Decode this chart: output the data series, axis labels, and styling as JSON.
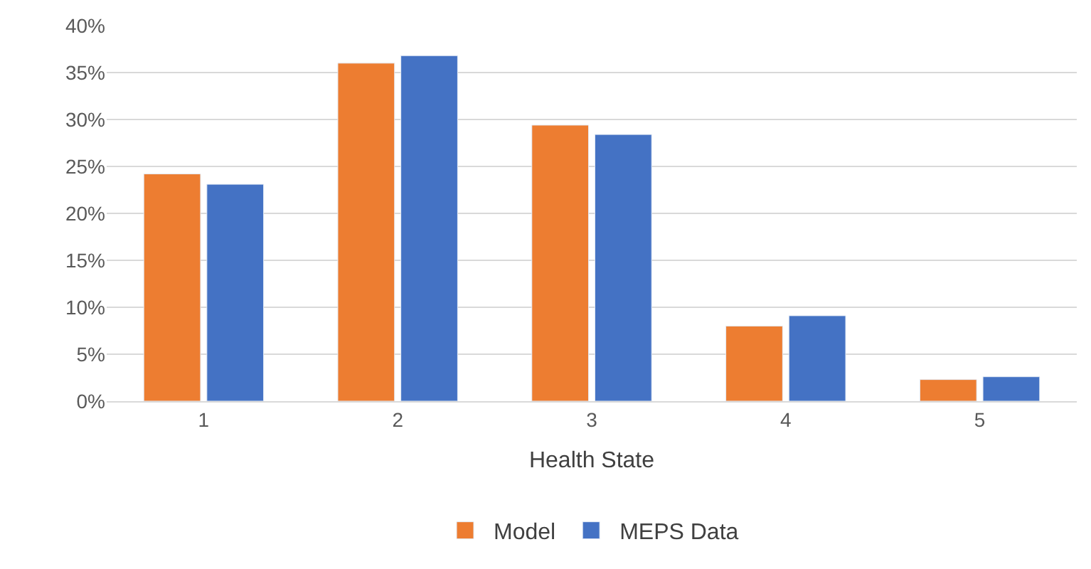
{
  "chart_data": {
    "type": "bar",
    "xlabel": "Health State",
    "categories": [
      "1",
      "2",
      "3",
      "4",
      "5"
    ],
    "series": [
      {
        "name": "Model",
        "color": "#ed7d31",
        "values": [
          24.2,
          36.0,
          29.4,
          8.0,
          2.3
        ]
      },
      {
        "name": "MEPS Data",
        "color": "#4472c4",
        "values": [
          23.1,
          36.8,
          28.4,
          9.1,
          2.6
        ]
      }
    ],
    "ylim": [
      0,
      40
    ],
    "yticks": [
      {
        "value": 0,
        "label": "0%"
      },
      {
        "value": 5,
        "label": "5%"
      },
      {
        "value": 10,
        "label": "10%"
      },
      {
        "value": 15,
        "label": "15%"
      },
      {
        "value": 20,
        "label": "20%"
      },
      {
        "value": 25,
        "label": "25%"
      },
      {
        "value": 30,
        "label": "30%"
      },
      {
        "value": 35,
        "label": "35%"
      },
      {
        "value": 40,
        "label": "40%"
      }
    ],
    "grid": "y",
    "legend": "bottom"
  }
}
